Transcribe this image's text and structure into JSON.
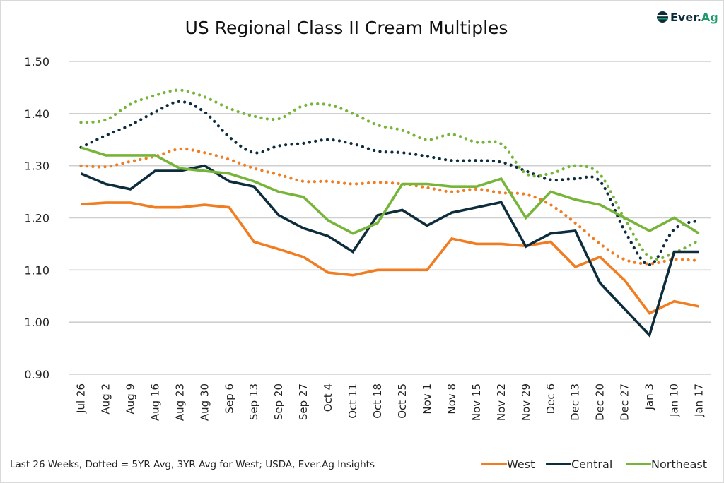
{
  "logo": {
    "part1": "Ever.",
    "part2": "Ag",
    "color_dark": "#0b2b3a",
    "color_accent": "#1f9a6b"
  },
  "chart_data": {
    "type": "line",
    "title": "US Regional Class II Cream Multiples",
    "xlabel": "",
    "ylabel": "",
    "ylim": [
      0.9,
      1.5
    ],
    "yticks": [
      "1.50",
      "1.40",
      "1.30",
      "1.20",
      "1.10",
      "1.00",
      "0.90"
    ],
    "ytick_values": [
      1.5,
      1.4,
      1.3,
      1.2,
      1.1,
      1.0,
      0.9
    ],
    "grid": true,
    "legend_position": "bottom-right",
    "categories": [
      "Jul 26",
      "Aug 2",
      "Aug 9",
      "Aug 16",
      "Aug 23",
      "Aug 30",
      "Sep 6",
      "Sep 13",
      "Sep 20",
      "Sep 27",
      "Oct 4",
      "Oct 11",
      "Oct 18",
      "Oct 25",
      "Nov 1",
      "Nov 8",
      "Nov 15",
      "Nov 22",
      "Nov 29",
      "Dec 6",
      "Dec 13",
      "Dec 20",
      "Dec 27",
      "Jan 3",
      "Jan 10",
      "Jan 17"
    ],
    "note": "Last 26 Weeks, Dotted = 5YR Avg, 3YR Avg for West; USDA, Ever.Ag Insights",
    "series": [
      {
        "name": "West",
        "color": "#f07d22",
        "style": "solid",
        "in_legend": true,
        "values": [
          1.226,
          1.229,
          1.229,
          1.22,
          1.22,
          1.225,
          1.22,
          1.154,
          1.14,
          1.125,
          1.095,
          1.09,
          1.1,
          1.1,
          1.1,
          1.16,
          1.15,
          1.15,
          1.146,
          1.154,
          1.106,
          1.125,
          1.08,
          1.017,
          1.04,
          1.03
        ]
      },
      {
        "name": "Central",
        "color": "#0d2d3c",
        "style": "solid",
        "in_legend": true,
        "values": [
          1.285,
          1.265,
          1.255,
          1.29,
          1.29,
          1.3,
          1.27,
          1.26,
          1.205,
          1.18,
          1.165,
          1.135,
          1.205,
          1.215,
          1.185,
          1.21,
          1.22,
          1.23,
          1.145,
          1.17,
          1.175,
          1.075,
          1.025,
          0.975,
          1.135,
          1.135
        ]
      },
      {
        "name": "Northeast",
        "color": "#76b53a",
        "style": "solid",
        "in_legend": true,
        "values": [
          1.335,
          1.32,
          1.32,
          1.32,
          1.295,
          1.29,
          1.285,
          1.27,
          1.25,
          1.24,
          1.195,
          1.17,
          1.19,
          1.265,
          1.265,
          1.26,
          1.26,
          1.275,
          1.2,
          1.25,
          1.235,
          1.225,
          1.2,
          1.175,
          1.2,
          1.17
        ]
      },
      {
        "name": "West 3YR Avg",
        "color": "#f07d22",
        "style": "dotted",
        "in_legend": false,
        "values": [
          1.3,
          1.298,
          1.308,
          1.318,
          1.332,
          1.325,
          1.312,
          1.295,
          1.283,
          1.27,
          1.27,
          1.265,
          1.268,
          1.265,
          1.258,
          1.25,
          1.255,
          1.248,
          1.245,
          1.225,
          1.19,
          1.15,
          1.12,
          1.112,
          1.12,
          1.118
        ]
      },
      {
        "name": "Central 5YR Avg",
        "color": "#0d2d3c",
        "style": "dotted",
        "in_legend": false,
        "values": [
          1.335,
          1.358,
          1.378,
          1.403,
          1.423,
          1.403,
          1.355,
          1.325,
          1.338,
          1.343,
          1.35,
          1.342,
          1.328,
          1.325,
          1.318,
          1.31,
          1.31,
          1.307,
          1.29,
          1.273,
          1.275,
          1.27,
          1.175,
          1.11,
          1.178,
          1.195
        ]
      },
      {
        "name": "Northeast 5YR Avg",
        "color": "#76b53a",
        "style": "dotted",
        "in_legend": false,
        "values": [
          1.383,
          1.388,
          1.418,
          1.435,
          1.445,
          1.432,
          1.41,
          1.395,
          1.39,
          1.415,
          1.417,
          1.4,
          1.378,
          1.368,
          1.35,
          1.36,
          1.345,
          1.342,
          1.285,
          1.285,
          1.3,
          1.283,
          1.198,
          1.125,
          1.133,
          1.157
        ]
      }
    ]
  }
}
